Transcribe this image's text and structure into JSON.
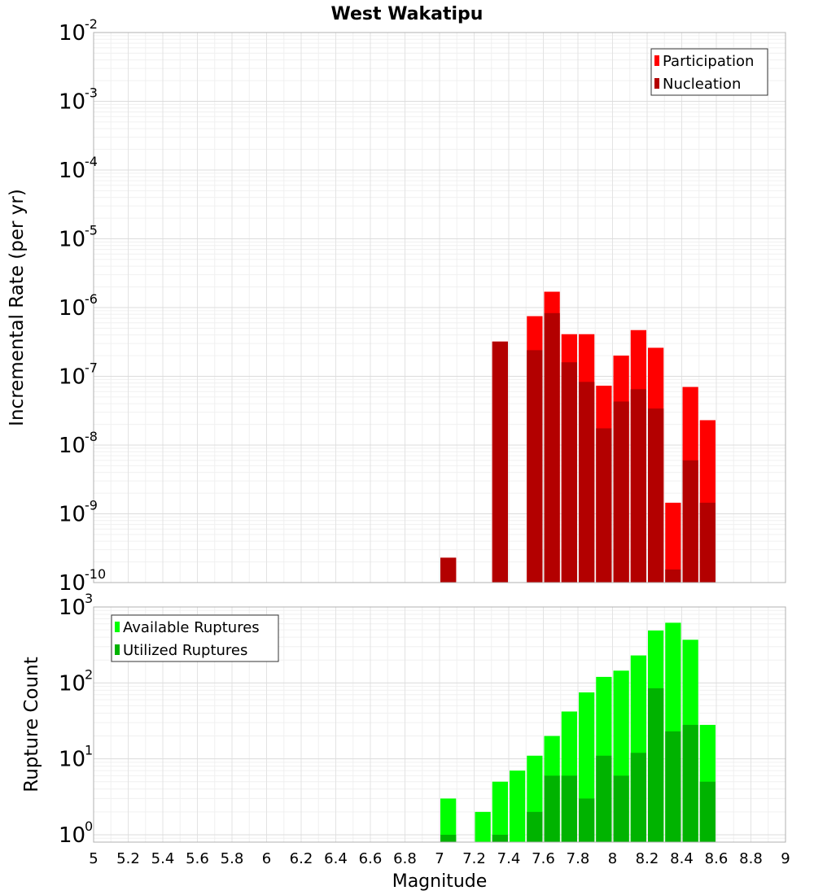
{
  "chart_data": {
    "title": "West Wakatipu",
    "xlabel": "Magnitude",
    "x_ticks": [
      "5",
      "5.2",
      "5.4",
      "5.6",
      "5.8",
      "6",
      "6.2",
      "6.4",
      "6.6",
      "6.8",
      "7",
      "7.2",
      "7.4",
      "7.6",
      "7.8",
      "8",
      "8.2",
      "8.4",
      "8.6",
      "8.8",
      "9"
    ],
    "xlim": [
      5,
      9
    ],
    "bin_width": 0.1,
    "panels": [
      {
        "type": "bar",
        "ylabel": "Incremental Rate (per yr)",
        "yscale": "log",
        "ylim": [
          1e-10,
          0.01
        ],
        "y_tick_exponents": [
          "-10",
          "-9",
          "-8",
          "-7",
          "-6",
          "-5",
          "-4",
          "-3",
          "-2"
        ],
        "legend_position": "top-right",
        "x": [
          7.05,
          7.15,
          7.25,
          7.35,
          7.45,
          7.55,
          7.65,
          7.75,
          7.85,
          7.95,
          8.05,
          8.15,
          8.25,
          8.35,
          8.45,
          8.55
        ],
        "series": [
          {
            "name": "Participation",
            "color": "#ff0000",
            "values": [
              2.3e-10,
              null,
              null,
              3.2e-07,
              null,
              7.5e-07,
              1.7e-06,
              4.1e-07,
              4.1e-07,
              7.3e-08,
              2e-07,
              4.7e-07,
              2.6e-07,
              1.45e-09,
              7e-08,
              2.3e-08
            ]
          },
          {
            "name": "Nucleation",
            "color": "#b30000",
            "values": [
              2.3e-10,
              null,
              null,
              3.2e-07,
              null,
              2.4e-07,
              8.3e-07,
              1.6e-07,
              8.3e-08,
              1.75e-08,
              4.3e-08,
              6.5e-08,
              3.4e-08,
              1.55e-10,
              6e-09,
              1.45e-09
            ]
          }
        ]
      },
      {
        "type": "bar",
        "ylabel": "Rupture Count",
        "yscale": "log",
        "ylim": [
          0.8,
          1000
        ],
        "y_tick_exponents": [
          "0",
          "1",
          "2",
          "3"
        ],
        "legend_position": "top-left",
        "x": [
          7.05,
          7.15,
          7.25,
          7.35,
          7.45,
          7.55,
          7.65,
          7.75,
          7.85,
          7.95,
          8.05,
          8.15,
          8.25,
          8.35,
          8.45,
          8.55
        ],
        "series": [
          {
            "name": "Available Ruptures",
            "color": "#00ff00",
            "values": [
              3,
              null,
              2,
              5,
              7,
              11,
              20,
              42,
              75,
              120,
              145,
              230,
              490,
              620,
              370,
              28
            ]
          },
          {
            "name": "Utilized Ruptures",
            "color": "#00b300",
            "values": [
              1,
              null,
              null,
              1,
              null,
              2,
              6,
              6,
              3,
              11,
              6,
              12,
              85,
              23,
              28,
              5
            ]
          }
        ]
      }
    ]
  }
}
